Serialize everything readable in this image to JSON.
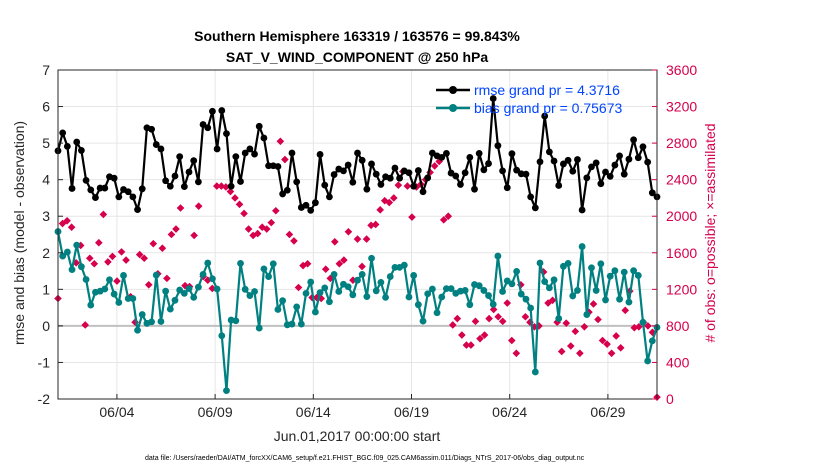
{
  "chart_data": {
    "type": "line",
    "title": "Southern Hemisphere 163319 / 163576 = 99.843%",
    "subtitle": "SAT_V_WIND_COMPONENT @ 250 hPa",
    "xlabel": "Jun.01,2017 00:00:00 start",
    "ylabel_left": "rmse and bias (model - observation)",
    "ylabel_right": "# of obs: o=possible; ×=assimilated",
    "footer": "data file: /Users/raeder/DAI/ATM_forcXX/CAM6_setup/f.e21.FHIST_BGC.f09_025.CAM6assim.011/Diags_NTrS_2017-06/obs_diag_output.nc",
    "x_range_days": [
      0,
      30.5
    ],
    "x_ticks": [
      {
        "day": 3,
        "label": "06/04"
      },
      {
        "day": 8,
        "label": "06/09"
      },
      {
        "day": 13,
        "label": "06/14"
      },
      {
        "day": 18,
        "label": "06/19"
      },
      {
        "day": 23,
        "label": "06/24"
      },
      {
        "day": 28,
        "label": "06/29"
      }
    ],
    "ylim_left": [
      -2,
      7
    ],
    "yticks_left": [
      "-2",
      "-1",
      "0",
      "1",
      "2",
      "3",
      "4",
      "5",
      "6",
      "7"
    ],
    "ylim_right": [
      0,
      3600
    ],
    "yticks_right": [
      "0",
      "400",
      "800",
      "1200",
      "1600",
      "2000",
      "2400",
      "2800",
      "3200",
      "3600"
    ],
    "colors": {
      "rmse": "#000000",
      "bias": "#008080",
      "obs": "#D6004C",
      "legend_text": "#0044ff",
      "zero_line": "#c0c0c0",
      "grid": "#e6e6e6"
    },
    "series": [
      {
        "name": "rmse grand pr = 4.3716",
        "axis": "left",
        "values": [
          4.79,
          5.28,
          4.91,
          3.76,
          5.03,
          4.8,
          3.98,
          3.72,
          3.51,
          3.77,
          3.77,
          4.08,
          4.04,
          3.53,
          3.73,
          3.67,
          3.53,
          3.18,
          3.75,
          5.42,
          5.38,
          4.96,
          4.84,
          3.97,
          3.82,
          4.1,
          4.63,
          3.81,
          4.21,
          4.52,
          3.94,
          5.51,
          5.42,
          5.87,
          4.84,
          5.89,
          5.26,
          3.82,
          4.63,
          3.95,
          4.73,
          4.84,
          4.7,
          5.46,
          5.14,
          4.38,
          4.38,
          4.36,
          3.61,
          3.71,
          4.73,
          3.94,
          3.24,
          3.3,
          3.16,
          3.37,
          4.69,
          3.85,
          3.53,
          4.14,
          4.29,
          4.24,
          4.4,
          3.93,
          4.73,
          4.53,
          3.74,
          4.43,
          4.15,
          3.87,
          4.08,
          4.04,
          4.32,
          4.04,
          4.24,
          4.19,
          3.82,
          4.25,
          3.67,
          4.05,
          4.73,
          4.65,
          4.61,
          4.72,
          4.18,
          4.1,
          3.87,
          4.19,
          4.61,
          3.74,
          4.72,
          4.27,
          4.44,
          6.22,
          4.93,
          4.24,
          3.78,
          4.71,
          4.26,
          4.16,
          4.15,
          3.53,
          3.23,
          4.49,
          5.74,
          4.76,
          4.51,
          3.84,
          4.43,
          4.53,
          4.23,
          4.55,
          3.17,
          4.05,
          4.35,
          4.46,
          3.89,
          4.21,
          4.09,
          4.4,
          4.65,
          4.15,
          4.56,
          5.09,
          4.6,
          4.9,
          4.48,
          3.64,
          3.53
        ]
      },
      {
        "name": "bias grand pr = 0.75673",
        "axis": "left",
        "values": [
          2.58,
          1.91,
          2.02,
          1.54,
          2.21,
          1.62,
          1.27,
          0.57,
          0.92,
          0.95,
          1.01,
          1.26,
          0.87,
          0.64,
          1.38,
          0.75,
          0.75,
          -0.12,
          0.31,
          0.07,
          0.11,
          1.39,
          0.12,
          0.95,
          0.46,
          0.7,
          0.98,
          0.89,
          1.02,
          0.78,
          1.06,
          1.41,
          1.72,
          1.29,
          1.01,
          -0.27,
          -1.77,
          0.16,
          0.14,
          1.71,
          1.0,
          0.83,
          0.94,
          -0.06,
          1.56,
          1.35,
          1.7,
          0.45,
          0.69,
          0.03,
          0.05,
          0.52,
          0.05,
          0.89,
          1.2,
          0.38,
          0.91,
          1.04,
          0.66,
          1.41,
          0.94,
          1.14,
          1.07,
          0.85,
          1.25,
          1.41,
          0.8,
          1.85,
          0.96,
          1.19,
          0.78,
          1.35,
          1.6,
          1.6,
          1.66,
          0.79,
          1.38,
          0.58,
          0.13,
          0.88,
          1.01,
          0.36,
          0.79,
          1.02,
          1.02,
          0.89,
          0.95,
          0.97,
          0.58,
          1.13,
          1.1,
          0.97,
          0.83,
          0.59,
          1.91,
          0.94,
          1.23,
          1.15,
          1.49,
          0.87,
          0.73,
          0.49,
          -1.26,
          1.72,
          1.21,
          1.04,
          1.26,
          0.2,
          1.63,
          1.71,
          0.82,
          0.97,
          2.17,
          0.31,
          1.59,
          0.97,
          1.7,
          0.71,
          1.36,
          1.51,
          0.73,
          1.47,
          0.65,
          1.51,
          1.38,
          0.1,
          -0.96,
          -0.41,
          -0.04
        ]
      },
      {
        "name": "# assimilated",
        "axis": "right",
        "marker": "x",
        "values": [
          1100,
          1920,
          1950,
          1880,
          1490,
          1680,
          810,
          1540,
          1480,
          1710,
          2020,
          1500,
          1560,
          1290,
          1610,
          1520,
          1120,
          840,
          1580,
          1540,
          1250,
          1700,
          1370,
          1650,
          1320,
          1800,
          1860,
          2090,
          1240,
          1230,
          1790,
          2110,
          1340,
          1300,
          1210,
          2330,
          2330,
          2320,
          2270,
          2200,
          2130,
          2030,
          1860,
          1790,
          1810,
          1880,
          1860,
          1930,
          2060,
          2820,
          2620,
          1800,
          1730,
          1220,
          1460,
          1480,
          1110,
          1110,
          1100,
          1420,
          1320,
          1720,
          1480,
          1520,
          1830,
          1300,
          1750,
          1450,
          1750,
          1900,
          1910,
          2070,
          2170,
          2150,
          2200,
          2340,
          2490,
          2330,
          1990,
          2320,
          2350,
          2400,
          2480,
          2550,
          2600,
          1960,
          2000,
          810,
          880,
          700,
          590,
          590,
          850,
          660,
          700,
          880,
          980,
          900,
          850,
          1050,
          640,
          500,
          1250,
          900,
          840,
          790,
          800,
          1390,
          1050,
          1080,
          840,
          520,
          830,
          580,
          740,
          500,
          790,
          950,
          1040,
          870,
          640,
          600,
          500,
          690,
          560,
          970,
          1180,
          780,
          790,
          840,
          800,
          730,
          20
        ]
      }
    ]
  }
}
